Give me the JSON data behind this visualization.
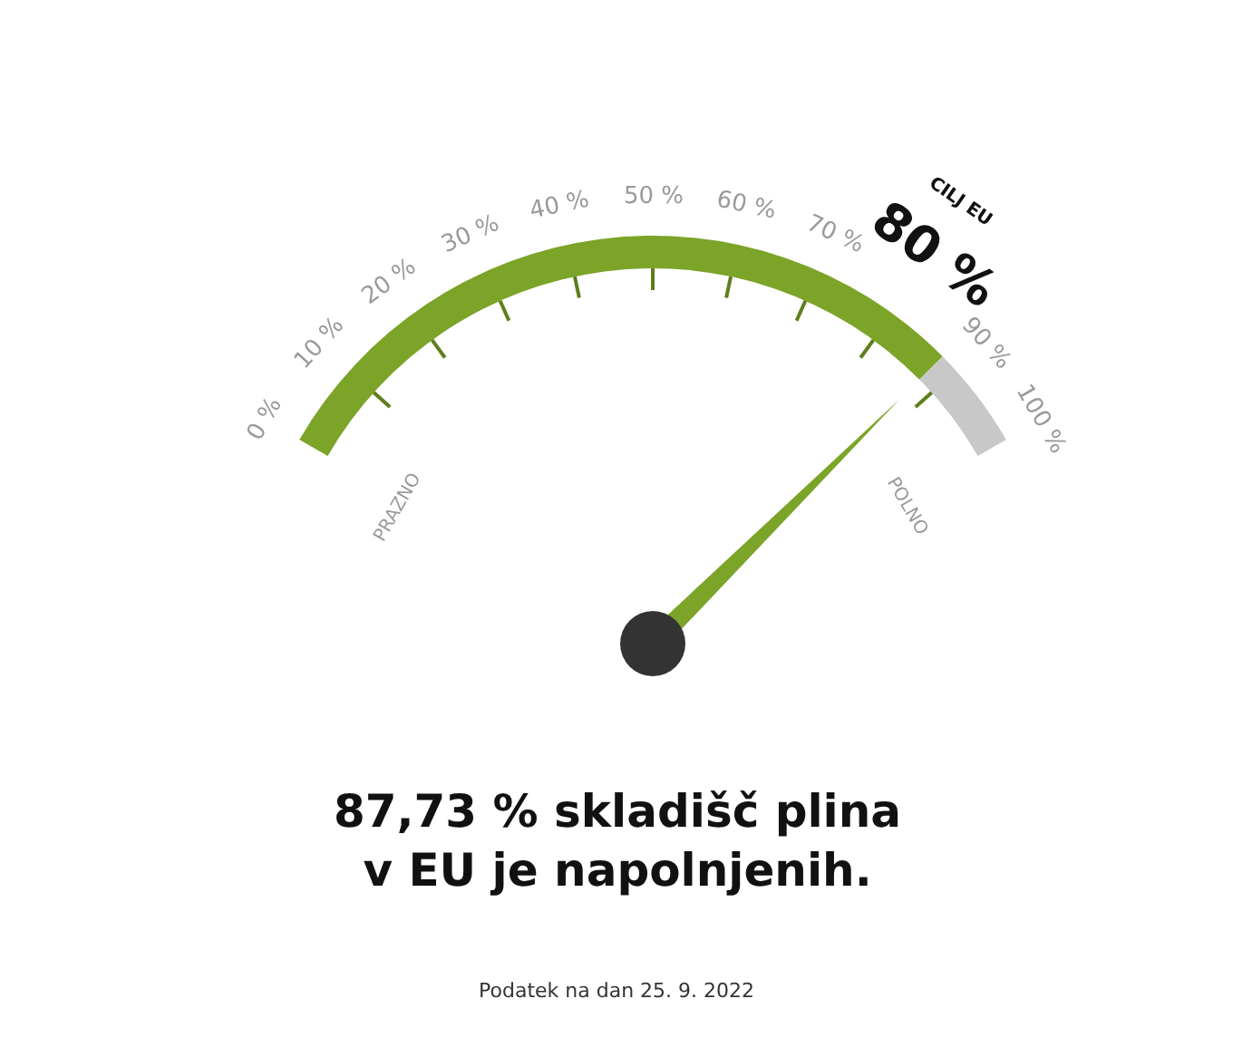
{
  "chart_data": {
    "type": "donut",
    "title": "87,73 % skladišč plina\nv EU je napolnjenih.",
    "categories": [
      null,
      null
    ],
    "values": [
      87.73,
      12.27
    ],
    "colors": [
      "#7ba428",
      "#c8c8c8"
    ],
    "annotations": [
      "0 %",
      "10 %",
      "20 %",
      "30 %",
      "40 %",
      "50 %",
      "60 %",
      "70 %",
      "80 %",
      "90 %",
      "100 %",
      "CILJ EU",
      "PRAZNO",
      "POLNO",
      "Podatek na dan 25. 9. 2022"
    ]
  }
}
